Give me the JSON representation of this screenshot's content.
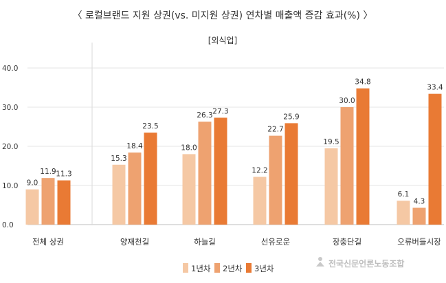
{
  "chart_data": {
    "type": "bar",
    "title": "〈 로컬브랜드 지원 상권(vs. 미지원 상권) 연차별 매출액 증감 효과(%) 〉",
    "subtitle": "[외식업]",
    "categories": [
      "전체 상권",
      "양재천길",
      "하늘길",
      "선유로운",
      "장충단길",
      "오류버들시장"
    ],
    "series": [
      {
        "name": "1년차",
        "values": [
          9.0,
          15.3,
          18.0,
          12.2,
          19.5,
          6.1
        ]
      },
      {
        "name": "2년차",
        "values": [
          11.9,
          18.4,
          26.3,
          22.7,
          30.0,
          4.3
        ]
      },
      {
        "name": "3년차",
        "values": [
          11.3,
          23.5,
          27.3,
          25.9,
          34.8,
          33.4
        ]
      }
    ],
    "value_labels": [
      [
        "9.0",
        "15.3",
        "18.0",
        "12.2",
        "19.5",
        "6.1"
      ],
      [
        "11.9",
        "18.4",
        "26.3",
        "22.7",
        "30.0",
        "4.3"
      ],
      [
        "11.3",
        "23.5",
        "27.3",
        "25.9",
        "34.8",
        "33.4"
      ]
    ],
    "y_ticks": [
      "0.0",
      "10.0",
      "20.0",
      "30.0",
      "40.0"
    ],
    "ylim": [
      0,
      40
    ],
    "xlabel": "",
    "ylabel": "",
    "grid": true,
    "legend_position": "bottom-center",
    "colors": [
      "#f5c8a4",
      "#eea270",
      "#e97a34"
    ],
    "watermark": "전국신문언론노동조합"
  }
}
